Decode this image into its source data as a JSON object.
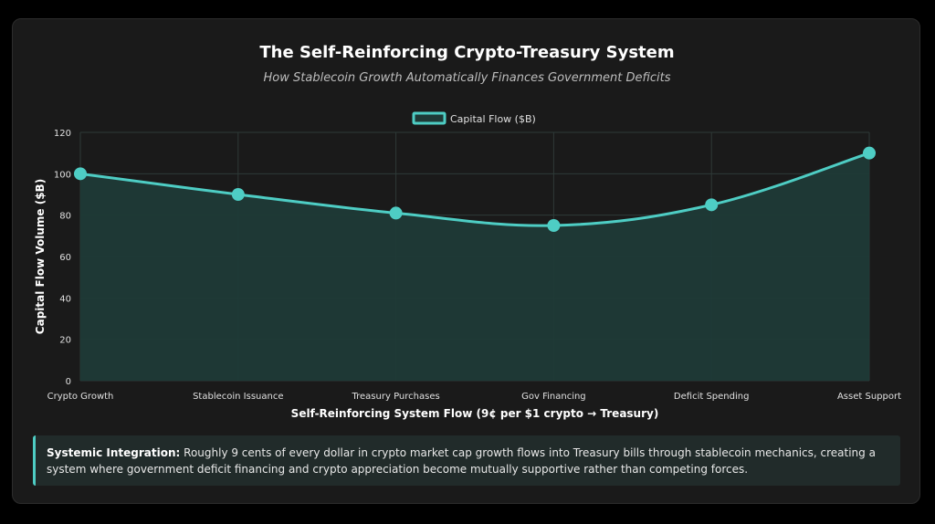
{
  "title": "The Self-Reinforcing Crypto-Treasury System",
  "subtitle": "How Stablecoin Growth Automatically Finances Government Deficits",
  "colors": {
    "accent": "#4ecdc4",
    "area_fill": "#1f3a37",
    "background": "#1a1a1a",
    "grid": "#2e3a38"
  },
  "chart_data": {
    "type": "line",
    "title": "The Self-Reinforcing Crypto-Treasury System",
    "subtitle": "How Stablecoin Growth Automatically Finances Government Deficits",
    "categories": [
      "Crypto Growth",
      "Stablecoin Issuance",
      "Treasury Purchases",
      "Gov Financing",
      "Deficit Spending",
      "Asset Support"
    ],
    "series": [
      {
        "name": "Capital Flow ($B)",
        "values": [
          100,
          90,
          81,
          75,
          85,
          110
        ]
      }
    ],
    "xlabel": "Self-Reinforcing System Flow (9¢ per $1 crypto → Treasury)",
    "ylabel": "Capital Flow Volume ($B)",
    "ylim": [
      0,
      120
    ],
    "yticks": [
      0,
      20,
      40,
      60,
      80,
      100,
      120
    ],
    "grid": true,
    "filled": true,
    "legend": "top-center"
  },
  "callout": {
    "heading": "Systemic Integration:",
    "text": " Roughly 9 cents of every dollar in crypto market cap growth flows into Treasury bills through stablecoin mechanics, creating a system where government deficit financing and crypto appreciation become mutually supportive rather than competing forces."
  }
}
